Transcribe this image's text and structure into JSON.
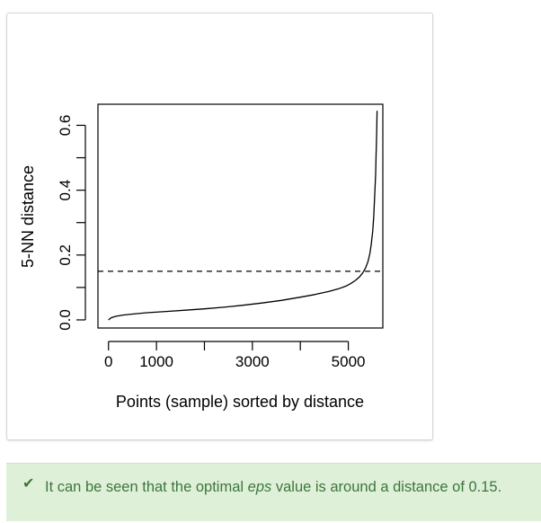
{
  "chart_data": {
    "type": "line",
    "title": "",
    "xlabel": "Points (sample) sorted by distance",
    "ylabel": "5-NN distance",
    "xlim": [
      -220,
      5720
    ],
    "ylim": [
      -0.025,
      0.665
    ],
    "x_ticks": [
      0,
      1000,
      2000,
      3000,
      4000,
      5000
    ],
    "x_tick_labels": [
      "0",
      "1000",
      "",
      "3000",
      "",
      "5000"
    ],
    "y_ticks": [
      0.0,
      0.1,
      0.2,
      0.3,
      0.4,
      0.5,
      0.6
    ],
    "y_tick_labels": [
      "0.0",
      "",
      "0.2",
      "",
      "0.4",
      "",
      "0.6"
    ],
    "grid": false,
    "series": [
      {
        "x": [
          0,
          50,
          150,
          300,
          500,
          800,
          1200,
          1600,
          2000,
          2400,
          2800,
          3200,
          3600,
          4000,
          4300,
          4600,
          4800,
          4950,
          5050,
          5150,
          5230,
          5300,
          5360,
          5410,
          5450,
          5480,
          5510,
          5530,
          5550,
          5570,
          5580,
          5590,
          5600
        ],
        "y": [
          0.0,
          0.006,
          0.011,
          0.015,
          0.018,
          0.022,
          0.026,
          0.03,
          0.034,
          0.039,
          0.045,
          0.052,
          0.06,
          0.07,
          0.078,
          0.088,
          0.096,
          0.104,
          0.112,
          0.122,
          0.132,
          0.145,
          0.16,
          0.18,
          0.205,
          0.235,
          0.275,
          0.32,
          0.38,
          0.45,
          0.51,
          0.57,
          0.645
        ]
      }
    ],
    "reference_lines": [
      {
        "orientation": "horizontal",
        "y": 0.15,
        "style": "dashed"
      }
    ]
  },
  "note": {
    "icon": "check-icon",
    "text_before": "It can be seen that the optimal ",
    "text_em": "eps",
    "text_after": " value is around a distance of 0.15.",
    "color": "#3c763d",
    "background": "#dff0d8"
  }
}
